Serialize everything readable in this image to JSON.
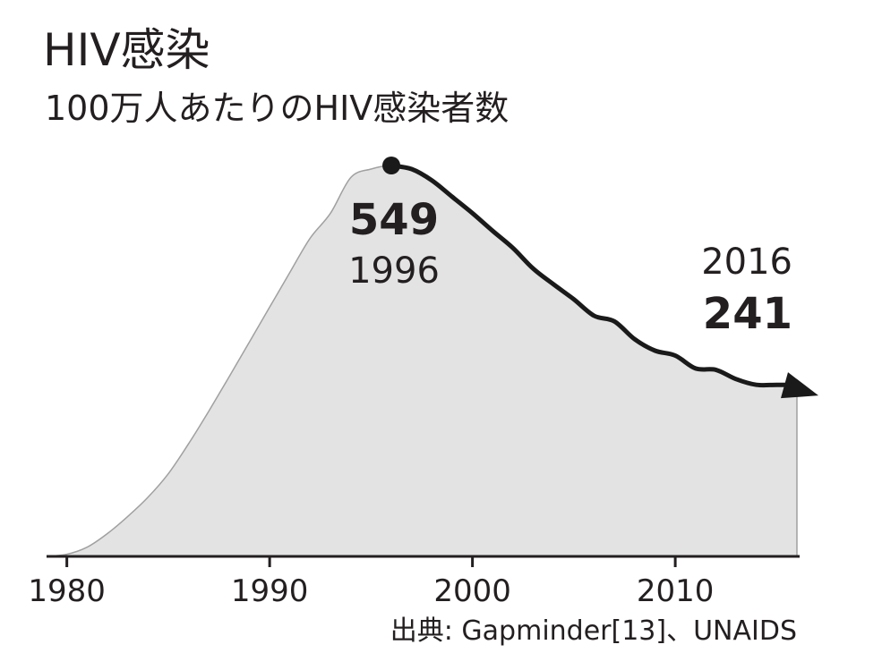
{
  "title": "HIV感染",
  "subtitle": "100万人あたりのHIV感染者数",
  "source": "出典: Gapminder[13]、UNAIDS",
  "colors": {
    "area_fill": "#e3e3e3",
    "area_edge": "#a0a0a0",
    "line": "#1a1a1a",
    "axis": "#231f20",
    "text": "#231f20"
  },
  "chart_data": {
    "type": "area",
    "title": "HIV感染",
    "subtitle": "100万人あたりのHIV感染者数",
    "xlabel": "",
    "ylabel": "",
    "x_ticks": [
      1980,
      1990,
      2000,
      2010
    ],
    "xlim": [
      1979,
      2016
    ],
    "ylim": [
      0,
      575
    ],
    "grid": false,
    "legend": "none",
    "series": [
      {
        "x": [
          1979,
          1980,
          1981,
          1982,
          1983,
          1984,
          1985,
          1986,
          1987,
          1988,
          1989,
          1990,
          1991,
          1992,
          1993,
          1994,
          1995,
          1996,
          1997,
          1998,
          1999,
          2000,
          2001,
          2002,
          2003,
          2004,
          2005,
          2006,
          2007,
          2008,
          2009,
          2010,
          2011,
          2012,
          2013,
          2014,
          2015,
          2016
        ],
        "values": [
          0,
          3,
          13,
          32,
          56,
          83,
          116,
          158,
          204,
          252,
          301,
          350,
          399,
          447,
          482,
          532,
          544,
          549,
          544,
          528,
          505,
          482,
          457,
          433,
          404,
          382,
          361,
          338,
          330,
          305,
          289,
          282,
          264,
          262,
          249,
          241,
          241,
          241
        ]
      }
    ],
    "emphasized_from": 1996,
    "annotations": [
      {
        "x": 1996,
        "value": "549",
        "label": "1996"
      },
      {
        "x": 2016,
        "value": "241",
        "label": "2016"
      }
    ]
  }
}
